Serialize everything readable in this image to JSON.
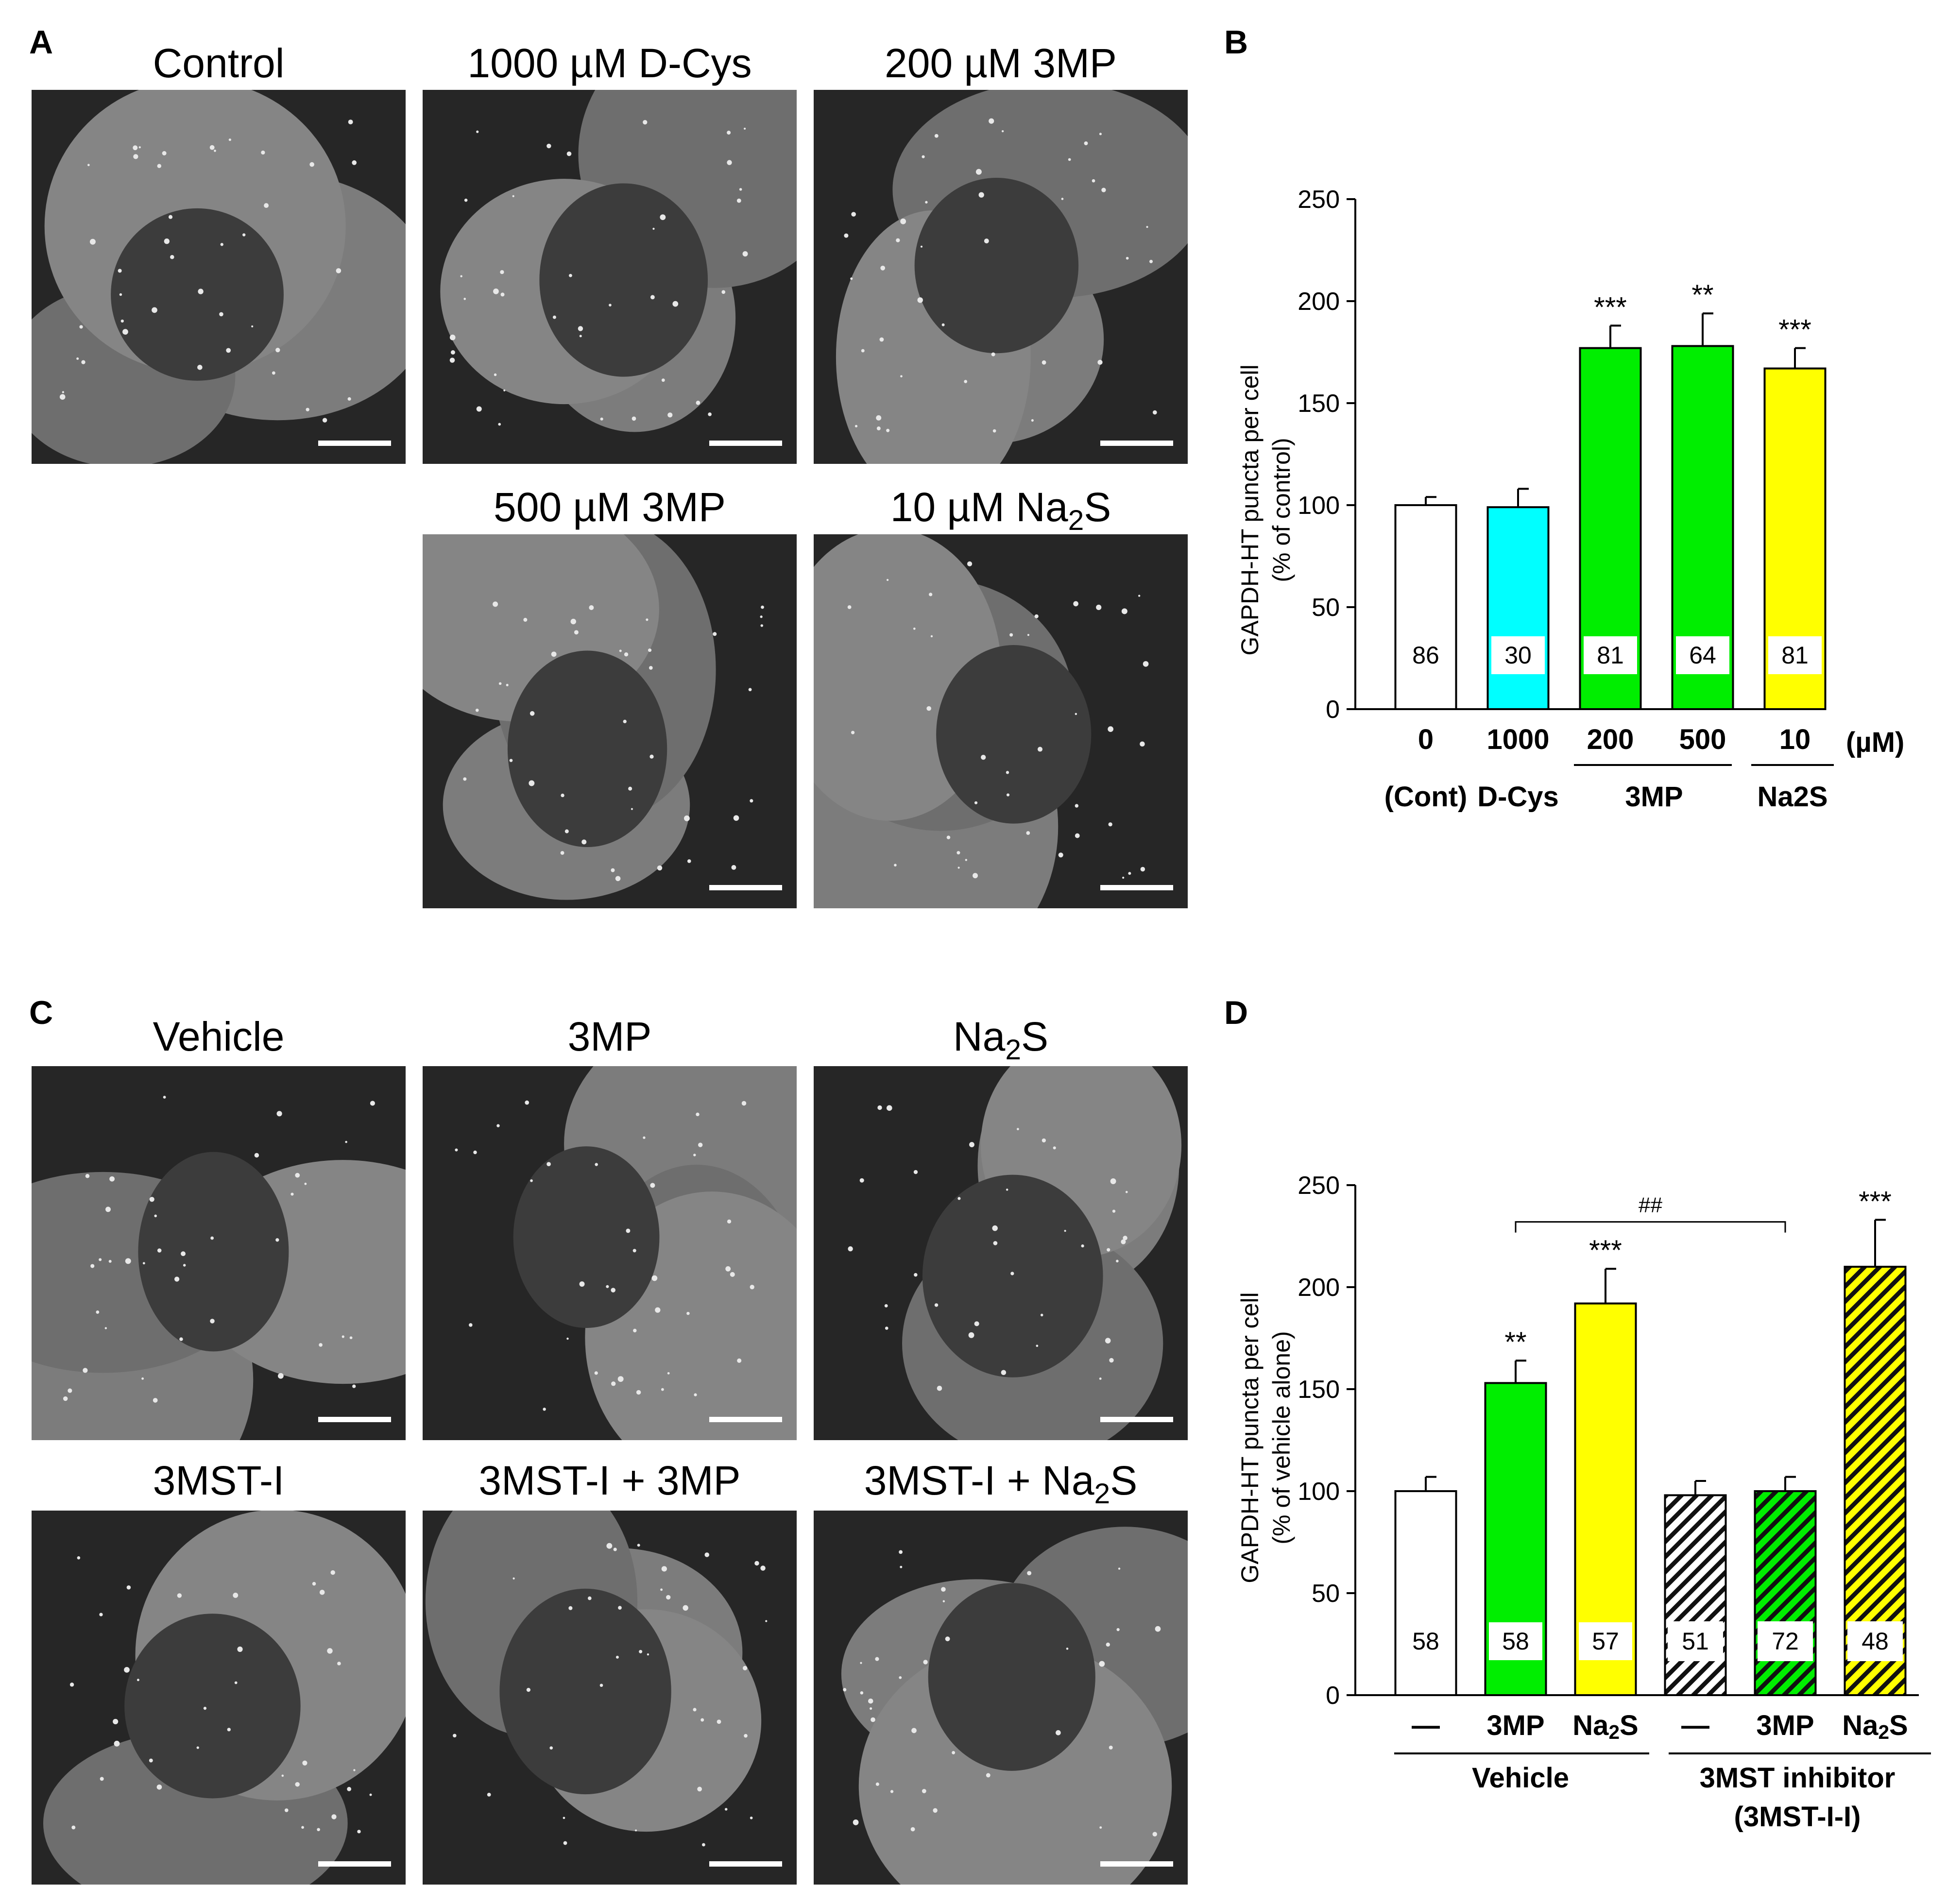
{
  "panelA": {
    "letter": "A",
    "titles": [
      "Control",
      "1000 µM D-Cys",
      "200 µM 3MP",
      "500 µM 3MP",
      "10 µM Na2S"
    ]
  },
  "panelB": {
    "letter": "B",
    "ylabel_line1": "GAPDH-HT puncta per cell",
    "ylabel_line2": "(% of control)",
    "unit_label": "(µM)",
    "x_labels": [
      "0",
      "1000",
      "200",
      "500",
      "10"
    ],
    "group_labels": [
      "(Cont)",
      "D-Cys",
      "3MP",
      "Na2S"
    ]
  },
  "panelC": {
    "letter": "C",
    "titles": [
      "Vehicle",
      "3MP",
      "Na2S",
      "3MST-I",
      "3MST-I + 3MP",
      "3MST-I + Na2S"
    ]
  },
  "panelD": {
    "letter": "D",
    "ylabel_line1": "GAPDH-HT puncta per cell",
    "ylabel_line2": "(% of vehicle alone)",
    "x_labels": [
      "—",
      "3MP",
      "Na2S",
      "—",
      "3MP",
      "Na2S"
    ],
    "group_label_vehicle": "Vehicle",
    "group_label_inhibitor_line1": "3MST inhibitor",
    "group_label_inhibitor_line2": "(3MST-I-I)",
    "bracket_label": "##"
  },
  "chart_data": [
    {
      "type": "bar",
      "panel": "B",
      "categories": [
        "0",
        "1000",
        "200",
        "500",
        "10"
      ],
      "values": [
        100,
        99,
        177,
        178,
        167
      ],
      "errors": [
        4,
        9,
        11,
        16,
        10
      ],
      "n_labels": [
        "86",
        "30",
        "81",
        "64",
        "81"
      ],
      "significance": [
        "",
        "",
        "***",
        "**",
        "***"
      ],
      "colors": [
        "#ffffff",
        "#00ffff",
        "#00ee00",
        "#00ee00",
        "#ffff00"
      ],
      "ylim": [
        0,
        250
      ],
      "yticks": [
        0,
        50,
        100,
        150,
        200,
        250
      ]
    },
    {
      "type": "bar",
      "panel": "D",
      "categories": [
        "—",
        "3MP",
        "Na2S",
        "—",
        "3MP",
        "Na2S"
      ],
      "values": [
        100,
        153,
        192,
        98,
        100,
        210
      ],
      "errors": [
        7,
        11,
        17,
        7,
        7,
        23
      ],
      "n_labels": [
        "58",
        "58",
        "57",
        "51",
        "72",
        "48"
      ],
      "significance": [
        "",
        "**",
        "***",
        "",
        "",
        "***"
      ],
      "colors": [
        "#ffffff",
        "#00ee00",
        "#ffff00",
        "#ffffff",
        "#00ee00",
        "#ffff00"
      ],
      "hatched": [
        false,
        false,
        false,
        true,
        true,
        true
      ],
      "ylim": [
        0,
        250
      ],
      "yticks": [
        0,
        50,
        100,
        150,
        200,
        250
      ]
    }
  ]
}
